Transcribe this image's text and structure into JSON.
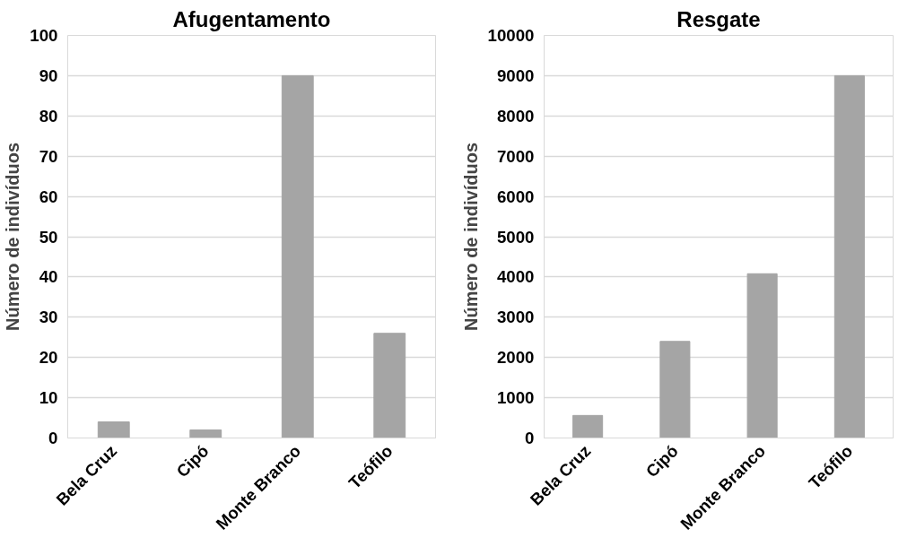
{
  "chart_data": [
    {
      "type": "bar",
      "title": "Afugentamento",
      "ylabel": "Número de indivíduos",
      "categories": [
        "Bela Cruz",
        "Cipó",
        "Monte Branco",
        "Teófilo"
      ],
      "values": [
        4,
        2,
        90,
        26
      ],
      "color": "#a5a5a5",
      "ylim": [
        0,
        100
      ],
      "yticks": [
        0,
        10,
        20,
        30,
        40,
        50,
        60,
        70,
        80,
        90,
        100
      ],
      "grid": "y"
    },
    {
      "type": "bar",
      "title": "Resgate",
      "ylabel": "Número de indivíduos",
      "categories": [
        "Bela Cruz",
        "Cipó",
        "Monte Branco",
        "Teófilo"
      ],
      "values": [
        560,
        2400,
        4080,
        9000
      ],
      "color": "#a5a5a5",
      "ylim": [
        0,
        10000
      ],
      "yticks": [
        0,
        1000,
        2000,
        3000,
        4000,
        5000,
        6000,
        7000,
        8000,
        9000,
        10000
      ],
      "grid": "y"
    }
  ]
}
